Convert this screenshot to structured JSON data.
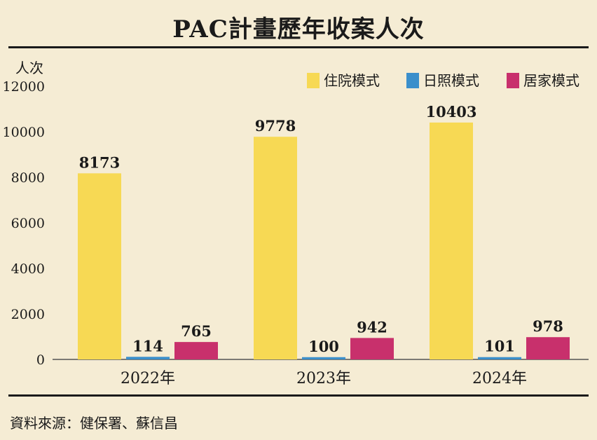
{
  "title": "PAC計畫歷年收案人次",
  "source": "資料來源：健保署、蘇信昌",
  "chart_data": {
    "type": "bar",
    "ylabel": "人次",
    "xlabel": "",
    "ylim": [
      0,
      12000
    ],
    "yticks": [
      0,
      2000,
      4000,
      6000,
      8000,
      10000,
      12000
    ],
    "categories": [
      "2022年",
      "2023年",
      "2024年"
    ],
    "grid": false,
    "legend_position": "top-right",
    "series": [
      {
        "name": "住院模式",
        "color": "#f7d954",
        "values": [
          8173,
          9778,
          10403
        ]
      },
      {
        "name": "日照模式",
        "color": "#3b8fcb",
        "values": [
          114,
          100,
          101
        ]
      },
      {
        "name": "居家模式",
        "color": "#c8306c",
        "values": [
          765,
          942,
          978
        ]
      }
    ]
  }
}
